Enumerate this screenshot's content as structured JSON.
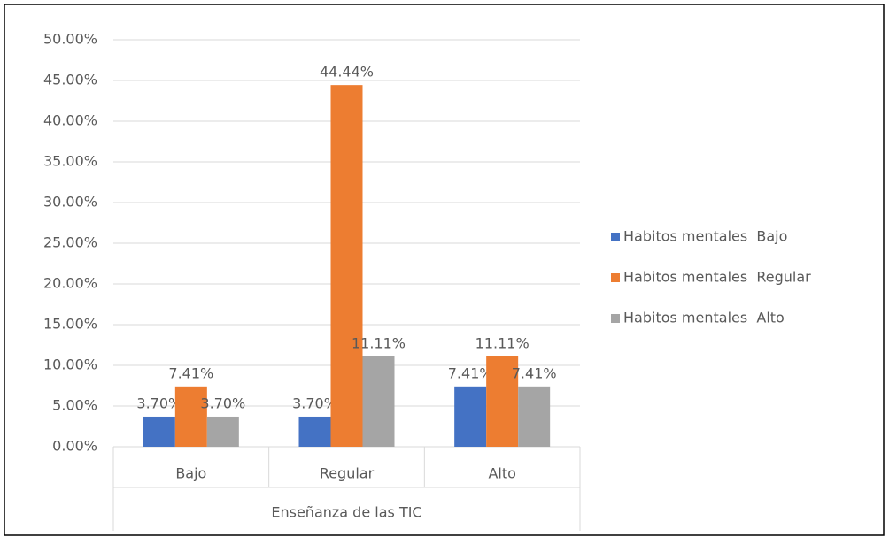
{
  "chart_data": {
    "type": "bar",
    "categories": [
      "Bajo",
      "Regular",
      "Alto"
    ],
    "xlabel": "Enseñanza de las TIC",
    "series": [
      {
        "name": "Habitos mentales  Bajo",
        "color": "#4472c4",
        "values": [
          3.7,
          3.7,
          7.41
        ],
        "value_labels": [
          "3.70%",
          "3.70%",
          "7.41%"
        ]
      },
      {
        "name": "Habitos mentales  Regular",
        "color": "#ed7d31",
        "values": [
          7.41,
          44.44,
          11.11
        ],
        "value_labels": [
          "7.41%",
          "44.44%",
          "11.11%"
        ]
      },
      {
        "name": "Habitos mentales  Alto",
        "color": "#a5a5a5",
        "values": [
          3.7,
          11.11,
          7.41
        ],
        "value_labels": [
          "3.70%",
          "11.11%",
          "7.41%"
        ]
      }
    ],
    "ylim": [
      0,
      50
    ],
    "yticks": [
      {
        "value": 0,
        "label": "0.00%"
      },
      {
        "value": 5,
        "label": "5.00%"
      },
      {
        "value": 10,
        "label": "10.00%"
      },
      {
        "value": 15,
        "label": "15.00%"
      },
      {
        "value": 20,
        "label": "20.00%"
      },
      {
        "value": 25,
        "label": "25.00%"
      },
      {
        "value": 30,
        "label": "30.00%"
      },
      {
        "value": 35,
        "label": "35.00%"
      },
      {
        "value": 40,
        "label": "40.00%"
      },
      {
        "value": 45,
        "label": "45.00%"
      },
      {
        "value": 50,
        "label": "50.00%"
      }
    ],
    "grid": true,
    "legend": "right"
  }
}
